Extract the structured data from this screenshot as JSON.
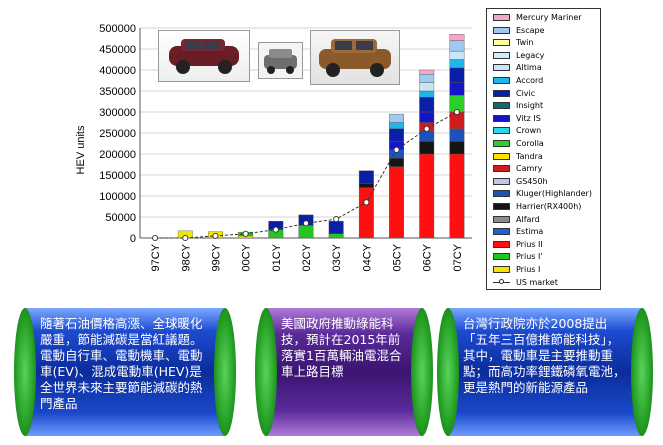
{
  "chart_data": {
    "type": "bar",
    "stacked": true,
    "ylabel": "HEV units",
    "ylim": [
      0,
      500000
    ],
    "yticks": [
      "0",
      "50000",
      "100000",
      "150000",
      "200000",
      "250000",
      "300000",
      "350000",
      "400000",
      "450000",
      "500000"
    ],
    "categories": [
      "97CY",
      "98CY",
      "99CY",
      "00CY",
      "01CY",
      "02CY",
      "03CY",
      "04CY",
      "05CY",
      "06CY",
      "07CY"
    ],
    "grid": true,
    "legend_position": "right",
    "series": [
      {
        "name": "Prius I",
        "color": "#f2e600",
        "values": [
          0,
          17000,
          15000,
          5000,
          0,
          0,
          0,
          0,
          0,
          0,
          0
        ]
      },
      {
        "name": "Prius I'",
        "color": "#22c522",
        "values": [
          0,
          0,
          0,
          9000,
          20000,
          30000,
          10000,
          0,
          0,
          0,
          0
        ]
      },
      {
        "name": "Prius II",
        "color": "#ff1010",
        "values": [
          0,
          0,
          0,
          0,
          0,
          0,
          0,
          120000,
          170000,
          200000,
          200000
        ]
      },
      {
        "name": "Estima",
        "color": "#1f5fd6",
        "values": [
          0,
          0,
          0,
          0,
          0,
          0,
          0,
          0,
          0,
          0,
          0
        ]
      },
      {
        "name": "Alfard",
        "color": "#8c8c8c",
        "values": [
          0,
          0,
          0,
          0,
          0,
          0,
          0,
          0,
          0,
          0,
          0
        ]
      },
      {
        "name": "Harrier(RX400h)",
        "color": "#141414",
        "values": [
          0,
          0,
          0,
          0,
          0,
          0,
          0,
          10000,
          20000,
          30000,
          30000
        ]
      },
      {
        "name": "Kluger(Highlander)",
        "color": "#1e52b8",
        "values": [
          0,
          0,
          0,
          0,
          0,
          0,
          0,
          0,
          20000,
          25000,
          30000
        ]
      },
      {
        "name": "GS450h",
        "color": "#c0c8e8",
        "values": [
          0,
          0,
          0,
          0,
          0,
          0,
          0,
          0,
          0,
          0,
          0
        ]
      },
      {
        "name": "Camry",
        "color": "#d01c1c",
        "values": [
          0,
          0,
          0,
          0,
          0,
          0,
          0,
          0,
          0,
          20000,
          40000
        ]
      },
      {
        "name": "Tandra",
        "color": "#ffe100",
        "values": [
          0,
          0,
          0,
          0,
          0,
          0,
          0,
          0,
          0,
          0,
          0
        ]
      },
      {
        "name": "Corolla",
        "color": "#2ad12a",
        "values": [
          0,
          0,
          0,
          0,
          0,
          0,
          0,
          0,
          0,
          0,
          40000
        ]
      },
      {
        "name": "Crown",
        "color": "#28d7e8",
        "values": [
          0,
          0,
          0,
          0,
          0,
          0,
          0,
          0,
          0,
          0,
          0
        ]
      },
      {
        "name": "Vitz IS",
        "color": "#1515c8",
        "values": [
          0,
          0,
          0,
          0,
          0,
          0,
          0,
          0,
          20000,
          25000,
          30000
        ]
      },
      {
        "name": "Insight",
        "color": "#0c6b6b",
        "values": [
          0,
          0,
          0,
          0,
          0,
          0,
          0,
          0,
          0,
          0,
          0
        ]
      },
      {
        "name": "Civic",
        "color": "#0a1fa8",
        "values": [
          0,
          0,
          0,
          0,
          20000,
          25000,
          30000,
          30000,
          30000,
          35000,
          35000
        ]
      },
      {
        "name": "Accord",
        "color": "#1fb6e8",
        "values": [
          0,
          0,
          0,
          0,
          0,
          0,
          0,
          0,
          15000,
          15000,
          20000
        ]
      },
      {
        "name": "Altima",
        "color": "#c6e6f8",
        "values": [
          0,
          0,
          0,
          0,
          0,
          0,
          0,
          0,
          0,
          20000,
          20000
        ]
      },
      {
        "name": "Legacy",
        "color": "#ccecff",
        "values": [
          0,
          0,
          0,
          0,
          0,
          0,
          0,
          0,
          0,
          0,
          0
        ]
      },
      {
        "name": "Twin",
        "color": "#ffff9e",
        "values": [
          0,
          0,
          0,
          0,
          0,
          0,
          0,
          0,
          0,
          0,
          0
        ]
      },
      {
        "name": "Escape",
        "color": "#9fc9ee",
        "values": [
          0,
          0,
          0,
          0,
          0,
          0,
          0,
          0,
          20000,
          20000,
          25000
        ]
      },
      {
        "name": "Mercury Mariner",
        "color": "#f4a6c8",
        "values": [
          0,
          0,
          0,
          0,
          0,
          0,
          0,
          0,
          0,
          10000,
          15000
        ]
      }
    ],
    "line_series": {
      "name": "US market",
      "color": "#333333",
      "values": [
        0,
        0,
        5000,
        10000,
        20000,
        35000,
        45000,
        85000,
        210000,
        260000,
        300000
      ]
    }
  },
  "text_panels": [
    "隨著石油價格高漲、全球暖化嚴重，節能減碳是當紅議題。電動自行車、電動機車、電動車(EV)、混成電動車(HEV)是全世界未來主要節能減碳的熱門產品",
    "美國政府推動綠能科技，預計在2015年前落實1百萬輛油電混合車上路目標",
    "台灣行政院亦於2008提出「五年三百億推節能科技」，其中，電動車是主要推動重點；而高功率鋰鐵磷氧電池，更是熱門的新能源產品"
  ]
}
